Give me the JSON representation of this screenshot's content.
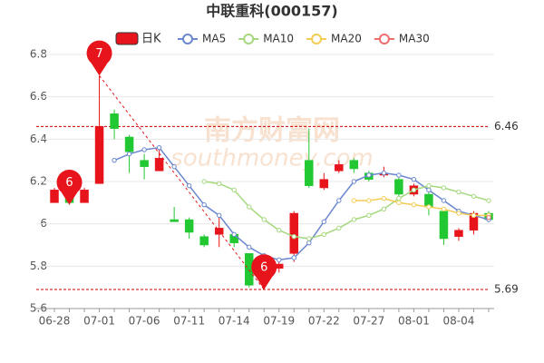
{
  "chart_data": {
    "type": "candlestick",
    "title": "中联重科(000157)",
    "candle_name": "日K",
    "categories": [
      "06-28",
      null,
      null,
      "07-01",
      null,
      null,
      "07-06",
      null,
      null,
      "07-11",
      null,
      null,
      "07-14",
      null,
      null,
      "07-19",
      null,
      null,
      "07-22",
      null,
      null,
      "07-27",
      null,
      null,
      "08-01",
      null,
      null,
      "08-04",
      null,
      null
    ],
    "open": [
      6.1,
      6.15,
      6.1,
      6.19,
      6.52,
      6.41,
      6.3,
      6.25,
      6.02,
      6.02,
      5.94,
      5.95,
      5.95,
      5.86,
      5.78,
      5.79,
      5.86,
      6.3,
      6.17,
      6.25,
      6.3,
      6.24,
      6.23,
      6.21,
      6.14,
      6.14,
      6.06,
      5.94,
      5.97,
      6.05
    ],
    "high": [
      6.17,
      6.17,
      6.17,
      6.7,
      6.54,
      6.42,
      6.33,
      6.36,
      6.08,
      6.03,
      5.95,
      6.03,
      5.96,
      5.86,
      5.8,
      5.82,
      6.06,
      6.45,
      6.24,
      6.3,
      6.31,
      6.25,
      6.27,
      6.22,
      6.19,
      6.15,
      6.07,
      5.98,
      6.06,
      6.06
    ],
    "low": [
      6.1,
      6.09,
      6.1,
      6.19,
      6.4,
      6.24,
      6.21,
      6.25,
      6.01,
      5.93,
      5.89,
      5.89,
      5.89,
      5.7,
      5.69,
      5.77,
      5.82,
      6.17,
      6.16,
      6.24,
      6.24,
      6.2,
      6.22,
      6.13,
      6.13,
      6.04,
      5.9,
      5.92,
      5.95,
      6.01
    ],
    "close": [
      6.16,
      6.1,
      6.16,
      6.46,
      6.45,
      6.34,
      6.27,
      6.31,
      6.01,
      5.96,
      5.9,
      5.98,
      5.91,
      5.71,
      5.72,
      5.81,
      6.05,
      6.18,
      6.21,
      6.28,
      6.26,
      6.21,
      6.24,
      6.14,
      6.18,
      6.08,
      5.93,
      5.97,
      6.05,
      6.02
    ],
    "up_color": "#e8141b",
    "down_color": "#22c832",
    "series": [
      {
        "name": "MA5",
        "color": "#6a87cf",
        "values": [
          null,
          null,
          null,
          null,
          6.3,
          6.33,
          6.35,
          6.36,
          6.27,
          6.18,
          6.09,
          6.04,
          5.95,
          5.89,
          5.85,
          5.83,
          5.84,
          5.91,
          6.01,
          6.11,
          6.2,
          6.23,
          6.24,
          6.23,
          6.21,
          6.16,
          6.11,
          6.06,
          6.04,
          6.02
        ]
      },
      {
        "name": "MA10",
        "color": "#a5d87e",
        "values": [
          null,
          null,
          null,
          null,
          null,
          null,
          null,
          null,
          null,
          null,
          6.2,
          6.19,
          6.16,
          6.08,
          6.02,
          5.97,
          5.94,
          5.93,
          5.95,
          5.98,
          6.02,
          6.04,
          6.07,
          6.12,
          6.16,
          6.18,
          6.17,
          6.15,
          6.13,
          6.11
        ]
      },
      {
        "name": "MA20",
        "color": "#f4cc54",
        "values": [
          null,
          null,
          null,
          null,
          null,
          null,
          null,
          null,
          null,
          null,
          null,
          null,
          null,
          null,
          null,
          null,
          null,
          null,
          null,
          null,
          6.11,
          6.11,
          6.12,
          6.1,
          6.09,
          6.08,
          6.07,
          6.05,
          6.04,
          6.04
        ]
      },
      {
        "name": "MA30",
        "color": "#ee6d6d",
        "values": [
          null,
          null,
          null,
          null,
          null,
          null,
          null,
          null,
          null,
          null,
          null,
          null,
          null,
          null,
          null,
          null,
          null,
          null,
          null,
          null,
          null,
          null,
          null,
          null,
          null,
          null,
          null,
          null,
          null,
          6.03
        ]
      }
    ],
    "markers": [
      {
        "label": "7",
        "at": "high",
        "value": 6.7
      },
      {
        "label": "6",
        "at": "low",
        "value": 6.09
      },
      {
        "label": "6",
        "at": "low",
        "value": 5.69
      }
    ],
    "reference_lines": [
      6.46,
      5.69
    ],
    "watermark": "南方财富网",
    "watermark_sub": "southmoney.com",
    "ylim": [
      5.6,
      6.8
    ],
    "yticks": [
      5.6,
      5.8,
      6,
      6.2,
      6.4,
      6.6,
      6.8
    ],
    "grid": true
  }
}
